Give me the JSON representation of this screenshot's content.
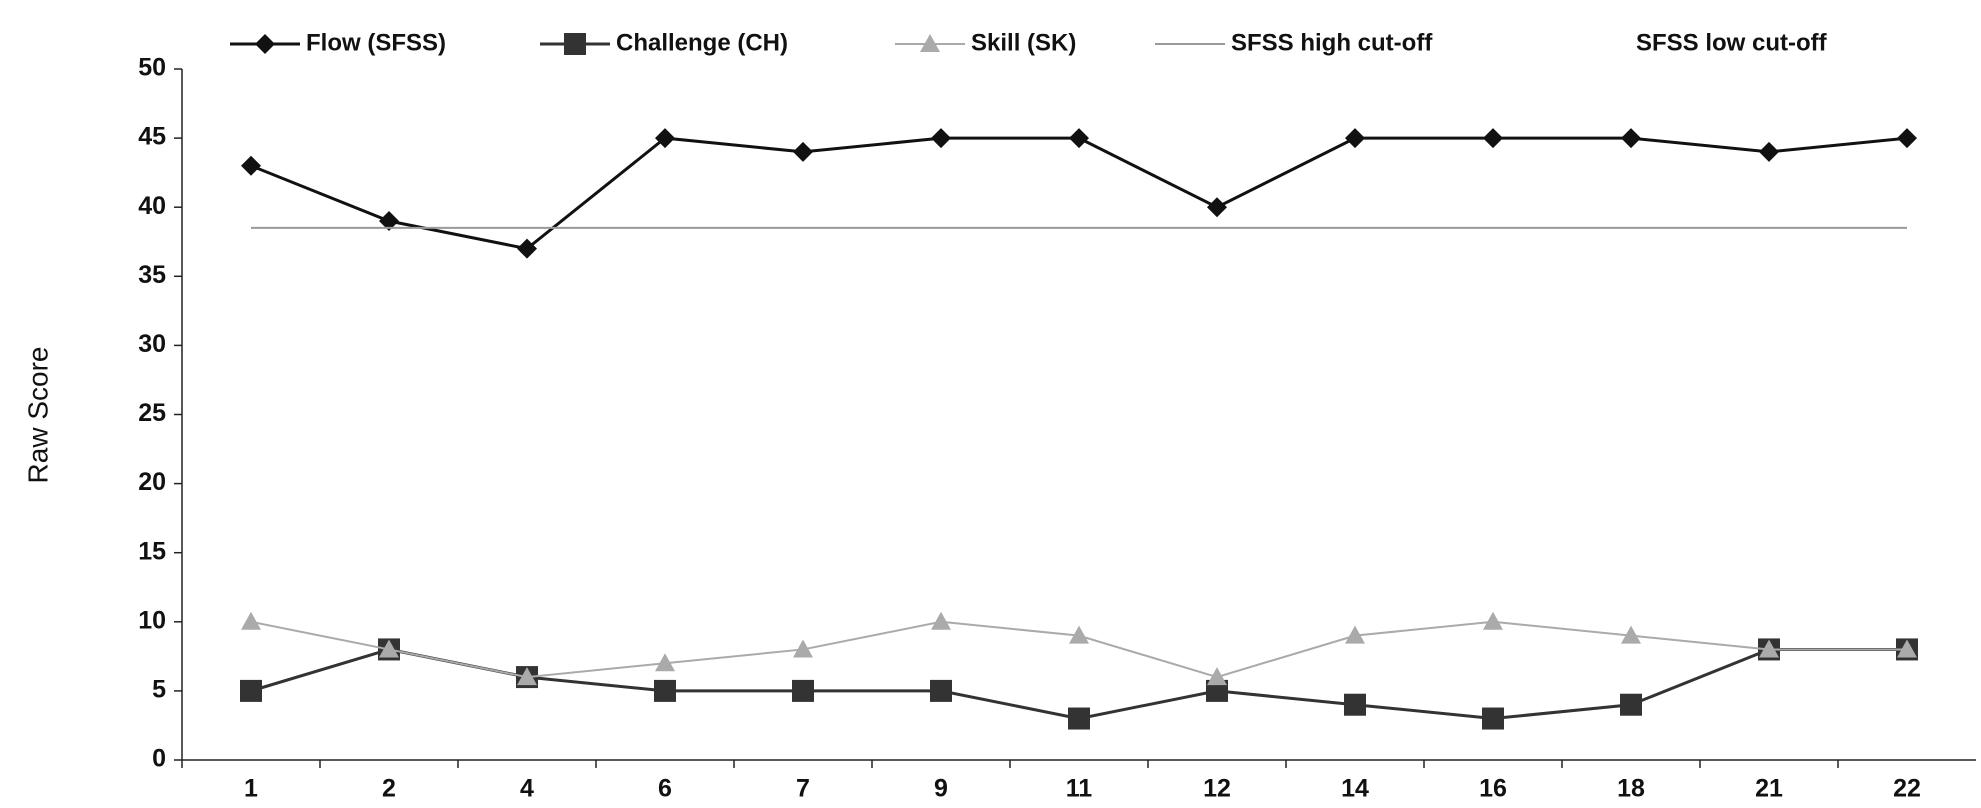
{
  "chart_data": {
    "type": "line",
    "y_label": "Raw Score",
    "categories": [
      "1",
      "2",
      "4",
      "6",
      "7",
      "9",
      "11",
      "12",
      "14",
      "16",
      "18",
      "21",
      "22"
    ],
    "series": [
      {
        "name": "Flow (SFSS)",
        "color": "#111111",
        "marker": "diamond",
        "values": [
          43,
          39,
          37,
          45,
          44,
          45,
          45,
          40,
          45,
          45,
          45,
          44,
          45
        ]
      },
      {
        "name": "Challenge (CH)",
        "color": "#333333",
        "marker": "square",
        "values": [
          5,
          8,
          6,
          5,
          5,
          5,
          3,
          5,
          4,
          3,
          4,
          8,
          8
        ]
      },
      {
        "name": "Skill (SK)",
        "color": "#aaaaaa",
        "marker": "triangle",
        "values": [
          10,
          8,
          6,
          7,
          8,
          10,
          9,
          6,
          9,
          10,
          9,
          8,
          8
        ]
      },
      {
        "name": "SFSS high cut-off",
        "color": "#999999",
        "marker": "none",
        "values": [
          38.5,
          38.5,
          38.5,
          38.5,
          38.5,
          38.5,
          38.5,
          38.5,
          38.5,
          38.5,
          38.5,
          38.5,
          38.5
        ]
      },
      {
        "name": "SFSS low cut-off",
        "marker": "none",
        "values": [
          null,
          null,
          null,
          null,
          null,
          null,
          null,
          null,
          null,
          null,
          null,
          null,
          null
        ]
      }
    ],
    "ylim": [
      0,
      50
    ],
    "yticks": [
      0,
      5,
      10,
      15,
      20,
      25,
      30,
      35,
      40,
      45,
      50
    ],
    "grid": false,
    "legend": "top"
  }
}
